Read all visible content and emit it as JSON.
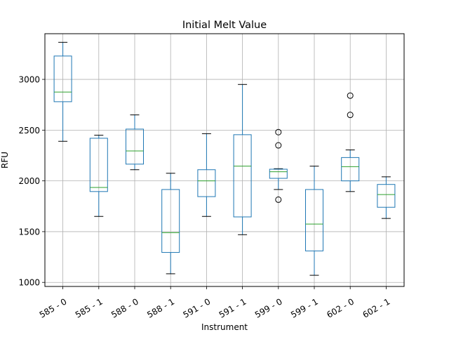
{
  "chart_data": {
    "type": "boxplot",
    "title": "Initial Melt Value",
    "xlabel": "Instrument",
    "ylabel": "RFU",
    "ylim": [
      960,
      3450
    ],
    "yticks": [
      1000,
      1500,
      2000,
      2500,
      3000
    ],
    "grid": true,
    "colors": {
      "box": "#1f77b4",
      "median": "#2ca02c",
      "whisker": "#000000",
      "grid": "#b0b0b0"
    },
    "categories": [
      "585 - 0",
      "585 - 1",
      "588 - 0",
      "588 - 1",
      "591 - 0",
      "591 - 1",
      "599 - 0",
      "599 - 1",
      "602 - 0",
      "602 - 1"
    ],
    "boxes": [
      {
        "label": "585 - 0",
        "whislo": 2390,
        "q1": 2780,
        "med": 2875,
        "q3": 3230,
        "whishi": 3365,
        "fliers": []
      },
      {
        "label": "585 - 1",
        "whislo": 1650,
        "q1": 1895,
        "med": 1935,
        "q3": 2420,
        "whishi": 2450,
        "fliers": []
      },
      {
        "label": "588 - 0",
        "whislo": 2110,
        "q1": 2165,
        "med": 2295,
        "q3": 2510,
        "whishi": 2650,
        "fliers": []
      },
      {
        "label": "588 - 1",
        "whislo": 1085,
        "q1": 1295,
        "med": 1490,
        "q3": 1915,
        "whishi": 2075,
        "fliers": []
      },
      {
        "label": "591 - 0",
        "whislo": 1650,
        "q1": 1845,
        "med": 2000,
        "q3": 2110,
        "whishi": 2465,
        "fliers": []
      },
      {
        "label": "591 - 1",
        "whislo": 1470,
        "q1": 1645,
        "med": 2145,
        "q3": 2455,
        "whishi": 2950,
        "fliers": []
      },
      {
        "label": "599 - 0",
        "whislo": 1915,
        "q1": 2025,
        "med": 2090,
        "q3": 2115,
        "whishi": 2120,
        "fliers": [
          2480,
          2350,
          1815
        ]
      },
      {
        "label": "599 - 1",
        "whislo": 1070,
        "q1": 1310,
        "med": 1575,
        "q3": 1915,
        "whishi": 2145,
        "fliers": []
      },
      {
        "label": "602 - 0",
        "whislo": 1895,
        "q1": 2000,
        "med": 2140,
        "q3": 2230,
        "whishi": 2305,
        "fliers": [
          2840,
          2650
        ]
      },
      {
        "label": "602 - 1",
        "whislo": 1630,
        "q1": 1740,
        "med": 1865,
        "q3": 1965,
        "whishi": 2040,
        "fliers": []
      }
    ]
  }
}
